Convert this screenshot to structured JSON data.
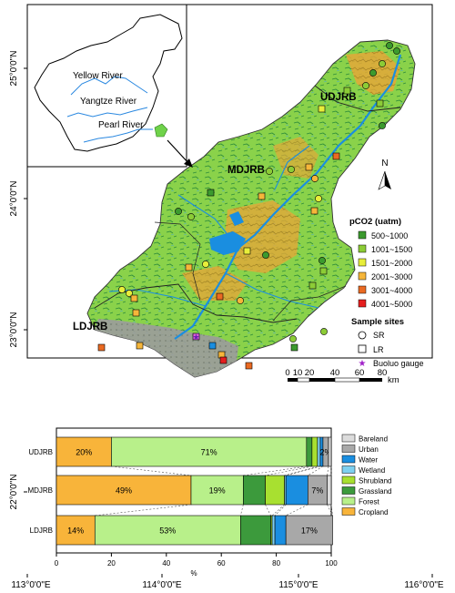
{
  "axes": {
    "lat_ticks": [
      "25°0'0\"N",
      "24°0'0\"N",
      "23°0'0\"N",
      "22°0'0\"N"
    ],
    "lon_ticks": [
      "113°0'0\"E",
      "114°0'0\"E",
      "115°0'0\"E",
      "116°0'0\"E"
    ]
  },
  "inset": {
    "rivers": [
      "Yellow River",
      "Yangtze River",
      "Pearl River"
    ]
  },
  "regions": [
    "UDJRB",
    "MDJRB",
    "LDJRB"
  ],
  "north_label": "N",
  "legend": {
    "title": "pCO2 (uatm)",
    "classes": [
      {
        "label": "500~1000",
        "color": "#3c9a2e"
      },
      {
        "label": "1001~1500",
        "color": "#8ccc36"
      },
      {
        "label": "1501~2000",
        "color": "#e8ee3a"
      },
      {
        "label": "2001~3000",
        "color": "#f6b63a"
      },
      {
        "label": "3001~4000",
        "color": "#ea6a22"
      },
      {
        "label": "4001~5000",
        "color": "#e51f1f"
      }
    ],
    "sites_title": "Sample sites",
    "sites": [
      "SR",
      "LR",
      "Buoluo gauge"
    ]
  },
  "scalebar": {
    "labels": [
      "0",
      "10",
      "20",
      "40",
      "60",
      "80"
    ],
    "unit": "km"
  },
  "landuse": {
    "legend": [
      "Bareland",
      "Urban",
      "Water",
      "Wetland",
      "Shrubland",
      "Grassland",
      "Forest",
      "Cropland"
    ],
    "colors": {
      "Cropland": "#f8b43a",
      "Forest": "#b8f08a",
      "Grassland": "#3c9a3c",
      "Shrubland": "#a8e030",
      "Wetland": "#7ed0f0",
      "Water": "#1a8ee0",
      "Urban": "#a8a8a8",
      "Bareland": "#dcdcdc"
    }
  },
  "chart_data": {
    "type": "bar",
    "orientation": "horizontal",
    "stacked": true,
    "categories": [
      "UDJRB",
      "MDJRB",
      "LDJRB"
    ],
    "xlabel": "%",
    "xlim": [
      0,
      100
    ],
    "xticks": [
      "0",
      "20",
      "40",
      "60",
      "80",
      "100"
    ],
    "series": [
      {
        "name": "Cropland",
        "values": [
          20,
          49,
          14
        ]
      },
      {
        "name": "Forest",
        "values": [
          71,
          19,
          53
        ]
      },
      {
        "name": "Grassland",
        "values": [
          2,
          8,
          11
        ]
      },
      {
        "name": "Shrubland",
        "values": [
          2,
          7,
          0.5
        ]
      },
      {
        "name": "Wetland",
        "values": [
          1,
          0.5,
          1
        ]
      },
      {
        "name": "Water",
        "values": [
          1,
          8,
          4
        ]
      },
      {
        "name": "Urban",
        "values": [
          2,
          7,
          17
        ]
      },
      {
        "name": "Bareland",
        "values": [
          1,
          1.5,
          0
        ]
      }
    ],
    "bar_labels": [
      [
        "20%",
        "71%",
        "",
        "",
        "",
        "",
        "2%",
        ""
      ],
      [
        "49%",
        "19%",
        "",
        "",
        "",
        "",
        "7%",
        ""
      ],
      [
        "14%",
        "53%",
        "",
        "",
        "",
        "",
        "17%",
        ""
      ]
    ]
  }
}
